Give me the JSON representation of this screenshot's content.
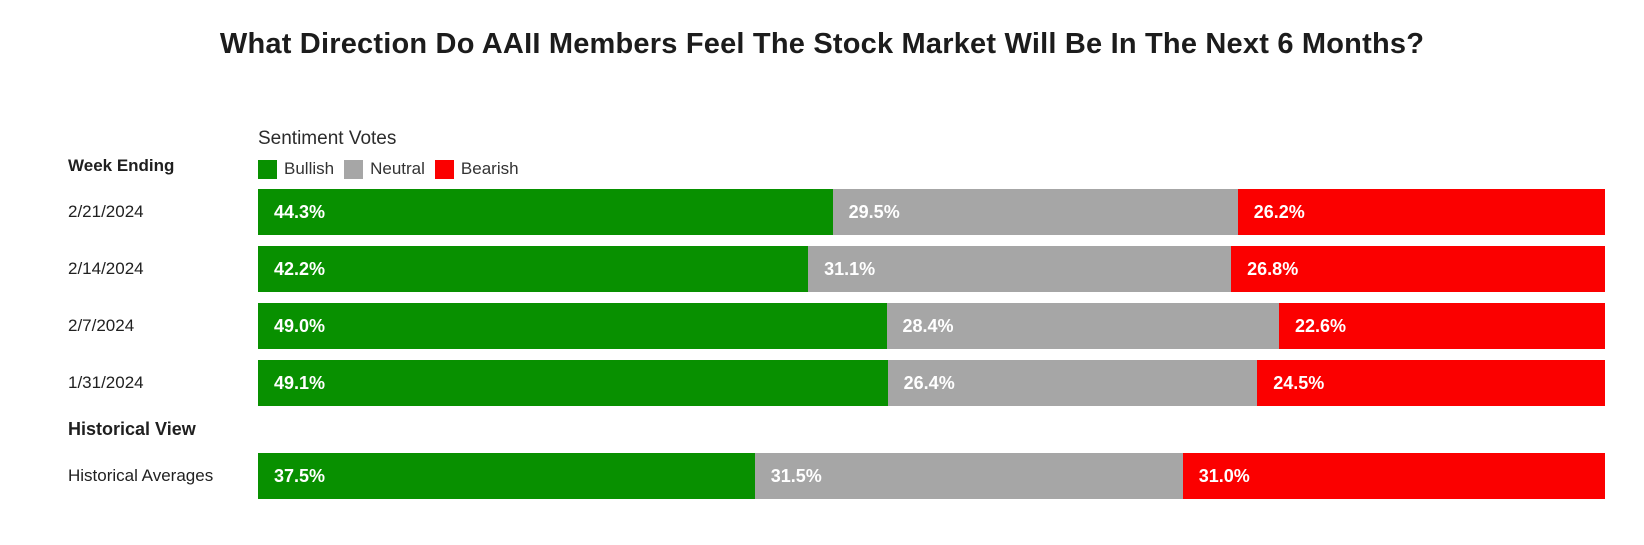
{
  "chart_data": {
    "type": "bar",
    "subtype": "horizontal-stacked-100pct",
    "title": "What Direction Do AAII Members Feel The Stock Market Will Be In The Next 6 Months?",
    "row_axis_label": "Week Ending",
    "legend_title": "Sentiment Votes",
    "legend_position": "top",
    "grid": false,
    "colors": {
      "bullish": "#089000",
      "neutral": "#a6a6a6",
      "bearish": "#fb0000"
    },
    "legend": [
      {
        "label": "Bullish",
        "color": "#089000"
      },
      {
        "label": "Neutral",
        "color": "#a6a6a6"
      },
      {
        "label": "Bearish",
        "color": "#fb0000"
      }
    ],
    "rows": [
      {
        "label": "2/21/2024",
        "values": [
          44.3,
          29.5,
          26.2
        ],
        "labels": [
          "44.3%",
          "29.5%",
          "26.2%"
        ]
      },
      {
        "label": "2/14/2024",
        "values": [
          42.2,
          31.1,
          26.8
        ],
        "labels": [
          "42.2%",
          "31.1%",
          "26.8%"
        ]
      },
      {
        "label": "2/7/2024",
        "values": [
          49.0,
          28.4,
          22.6
        ],
        "labels": [
          "49.0%",
          "28.4%",
          "22.6%"
        ]
      },
      {
        "label": "1/31/2024",
        "values": [
          49.1,
          26.4,
          24.5
        ],
        "labels": [
          "49.1%",
          "26.4%",
          "24.5%"
        ]
      }
    ],
    "section_heading": "Historical View",
    "historical_row": {
      "label": "Historical Averages",
      "values": [
        37.5,
        31.5,
        31.0
      ],
      "labels": [
        "37.5%",
        "31.5%",
        "31.0%"
      ]
    }
  }
}
